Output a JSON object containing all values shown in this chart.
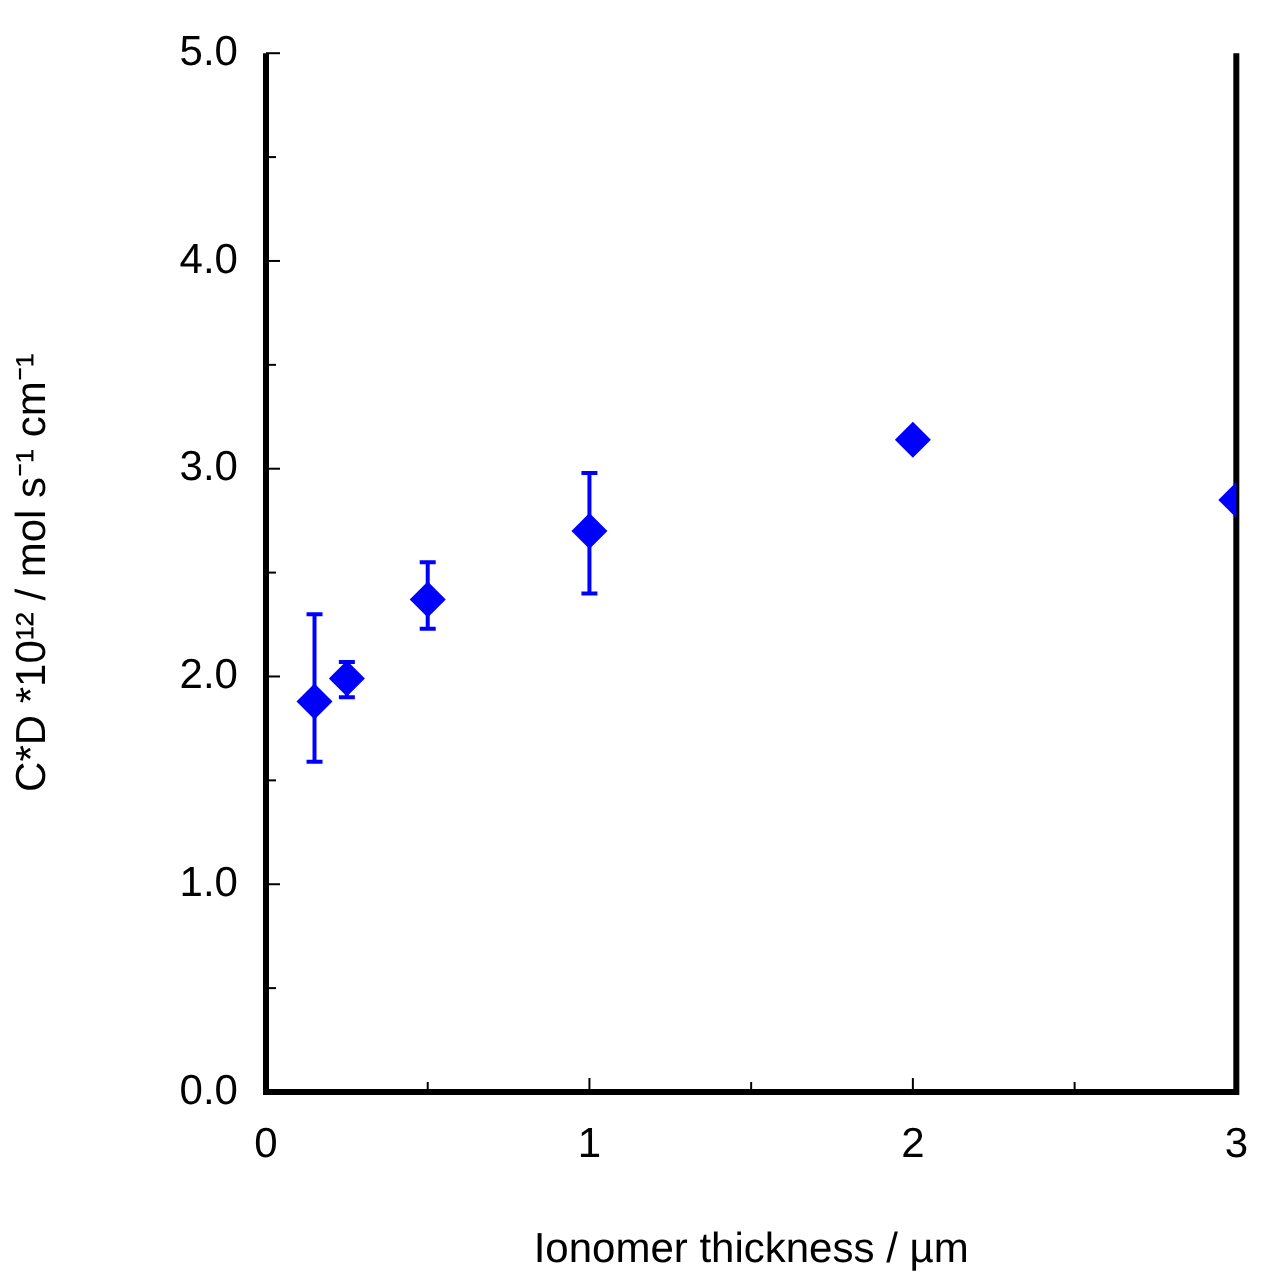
{
  "chart_data": {
    "type": "scatter",
    "xlabel": "Ionomer thickness / µm",
    "ylabel": "C*D *10¹² / mol s⁻¹ cm⁻¹",
    "x": [
      0.15,
      0.25,
      0.5,
      1.0,
      2.0,
      3.0
    ],
    "series": [
      {
        "color": "#0000ff",
        "values": [
          1.88,
          1.99,
          2.37,
          2.7,
          3.14,
          2.85
        ],
        "errors": [
          [
            1.59,
            2.3
          ],
          [
            1.9,
            2.07
          ],
          [
            2.23,
            2.55
          ],
          [
            2.4,
            2.98
          ],
          null,
          null
        ]
      }
    ],
    "marker": "diamond",
    "grid": false,
    "legend": false,
    "xlim": [
      0,
      3
    ],
    "xticks": [
      0,
      {
        "value": 0.5,
        "label": null
      },
      1,
      {
        "value": 1.5,
        "label": null
      },
      2,
      {
        "value": 2.5,
        "label": null
      },
      3
    ],
    "ylim": [
      0,
      5
    ],
    "yticks": [
      {
        "value": 0,
        "label": "0.0"
      },
      {
        "value": 0.5,
        "label": null
      },
      {
        "value": 1,
        "label": "1.0"
      },
      {
        "value": 1.5,
        "label": null
      },
      {
        "value": 2,
        "label": "2.0"
      },
      {
        "value": 2.5,
        "label": null
      },
      {
        "value": 3,
        "label": "3.0"
      },
      {
        "value": 3.5,
        "label": null
      },
      {
        "value": 4,
        "label": "4.0"
      },
      {
        "value": 4.5,
        "label": null
      },
      {
        "value": 5,
        "label": "5.0"
      }
    ]
  }
}
